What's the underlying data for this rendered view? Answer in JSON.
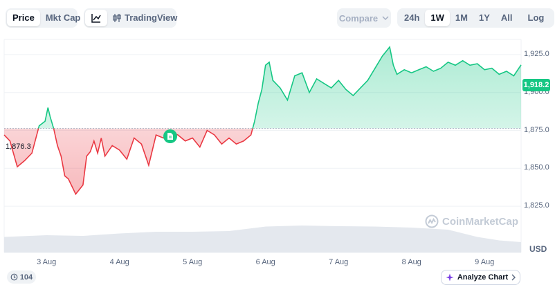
{
  "toolbar": {
    "metric_tabs": [
      "Price",
      "Mkt Cap"
    ],
    "active_metric": "Price",
    "chart_type_tabs": [
      {
        "icon": "line-chart-icon"
      },
      {
        "label": "TradingView",
        "icon": "candlestick-icon"
      }
    ],
    "compare_label": "Compare",
    "ranges": [
      "24h",
      "1W",
      "1M",
      "1Y",
      "All"
    ],
    "active_range": "1W",
    "log_label": "Log",
    "settings_icon": "sliders-icon"
  },
  "reference_price_label": "1,876.3",
  "current_price_label": "1,918.2",
  "currency_label": "USD",
  "watermark": "CoinMarketCap",
  "events_badge": {
    "icon": "history-icon",
    "count": "104"
  },
  "analyze_button": {
    "label": "Analyze Chart",
    "icon": "ai-sparkle-icon",
    "chevron": "chevron-right-icon"
  },
  "news_marker_icon": "document-icon",
  "colors": {
    "up": "#16c784",
    "down": "#ea3943",
    "grid": "#eff2f5",
    "volume": "#e4e8ee"
  },
  "chart_data": {
    "type": "area",
    "reference_value": 1876.3,
    "current_value": 1918.2,
    "ylim": [
      1815,
      1935
    ],
    "yticks": [
      1925,
      1900,
      1875,
      1850,
      1825
    ],
    "ytick_labels": [
      "1,925.0",
      "1,900.0",
      "1,875.0",
      "1,850.0",
      "1,825.0"
    ],
    "xticks": [
      {
        "x": 1,
        "label": "3 Aug"
      },
      {
        "x": 2,
        "label": "4 Aug"
      },
      {
        "x": 3,
        "label": "5 Aug"
      },
      {
        "x": 4,
        "label": "6 Aug"
      },
      {
        "x": 5,
        "label": "7 Aug"
      },
      {
        "x": 6,
        "label": "8 Aug"
      },
      {
        "x": 7,
        "label": "9 Aug"
      }
    ],
    "xlim": [
      0.42,
      7.5
    ],
    "series": [
      {
        "x": [
          0.42,
          0.5,
          0.6,
          0.7,
          0.8,
          0.9,
          0.98,
          1.02,
          1.05,
          1.1,
          1.15,
          1.2,
          1.25,
          1.3,
          1.4,
          1.5,
          1.55,
          1.6,
          1.65,
          1.7,
          1.75,
          1.8,
          1.9,
          2.0,
          2.1,
          2.15,
          2.2,
          2.3,
          2.4,
          2.45,
          2.5,
          2.6,
          2.7,
          2.8,
          2.9,
          3.0,
          3.1,
          3.2,
          3.3,
          3.4,
          3.5,
          3.6,
          3.7,
          3.8,
          3.85,
          3.9,
          3.95,
          4.0,
          4.05,
          4.1,
          4.2,
          4.3,
          4.4,
          4.5,
          4.6,
          4.7,
          4.8,
          4.9,
          5.0,
          5.1,
          5.2,
          5.3,
          5.4,
          5.5,
          5.6,
          5.7,
          5.75,
          5.8,
          5.9,
          6.0,
          6.1,
          6.2,
          6.3,
          6.4,
          6.5,
          6.6,
          6.7,
          6.8,
          6.9,
          7.0,
          7.1,
          7.2,
          7.3,
          7.4,
          7.5
        ],
        "values": [
          1872,
          1868,
          1851,
          1855,
          1860,
          1878,
          1881,
          1890,
          1884,
          1876,
          1865,
          1858,
          1845,
          1843,
          1833,
          1839,
          1858,
          1861,
          1868,
          1860,
          1870,
          1858,
          1865,
          1862,
          1856,
          1863,
          1870,
          1866,
          1852,
          1862,
          1872,
          1870,
          1874,
          1872,
          1868,
          1870,
          1864,
          1875,
          1872,
          1866,
          1870,
          1866,
          1868,
          1872,
          1881,
          1893,
          1902,
          1918,
          1920,
          1908,
          1903,
          1895,
          1911,
          1913,
          1900,
          1909,
          1906,
          1903,
          1908,
          1902,
          1898,
          1903,
          1908,
          1916,
          1924,
          1930,
          1918,
          1912,
          1915,
          1913,
          1915,
          1917,
          1914,
          1916,
          1920,
          1918,
          1921,
          1918,
          1919,
          1915,
          1916,
          1912,
          1914,
          1911,
          1918.2
        ]
      }
    ],
    "volume": {
      "x": [
        0.42,
        1.0,
        1.5,
        2.0,
        2.5,
        3.0,
        3.5,
        4.0,
        4.5,
        5.0,
        5.5,
        6.0,
        6.5,
        6.9,
        7.2,
        7.5
      ],
      "values": [
        0.45,
        0.5,
        0.48,
        0.55,
        0.6,
        0.6,
        0.62,
        0.75,
        0.78,
        0.76,
        0.75,
        0.72,
        0.66,
        0.45,
        0.35,
        0.3
      ]
    }
  }
}
